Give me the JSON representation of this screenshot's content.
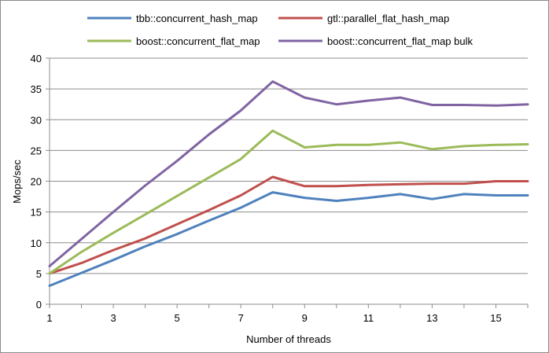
{
  "chart_data": {
    "type": "line",
    "title": "",
    "xlabel": "Number of threads",
    "ylabel": "Mops/sec",
    "xlim": [
      1,
      16
    ],
    "ylim": [
      0,
      40
    ],
    "x_ticks": [
      1,
      3,
      5,
      7,
      9,
      11,
      13,
      15
    ],
    "y_ticks": [
      0,
      5,
      10,
      15,
      20,
      25,
      30,
      35,
      40
    ],
    "grid": "horizontal",
    "legend_position": "top",
    "x": [
      1,
      2,
      3,
      4,
      5,
      6,
      7,
      8,
      9,
      10,
      11,
      12,
      13,
      14,
      15,
      16
    ],
    "series": [
      {
        "name": "tbb::concurrent_hash_map",
        "color": "#4f81bd",
        "values": [
          3.0,
          5.1,
          7.2,
          9.4,
          11.4,
          13.6,
          15.7,
          18.2,
          17.3,
          16.8,
          17.3,
          17.9,
          17.1,
          17.9,
          17.7,
          17.7
        ]
      },
      {
        "name": "gtl::parallel_flat_hash_map",
        "color": "#c0504d",
        "values": [
          5.0,
          6.7,
          8.8,
          10.7,
          13.0,
          15.3,
          17.7,
          20.7,
          19.2,
          19.2,
          19.4,
          19.5,
          19.6,
          19.6,
          20.0,
          20.0
        ]
      },
      {
        "name": "boost::concurrent_flat_map",
        "color": "#9bbb59",
        "values": [
          5.0,
          8.5,
          11.6,
          14.6,
          17.6,
          20.6,
          23.6,
          28.2,
          25.5,
          25.9,
          25.9,
          26.3,
          25.2,
          25.7,
          25.9,
          26.0
        ]
      },
      {
        "name": "boost::concurrent_flat_map bulk",
        "color": "#8064a2",
        "values": [
          6.2,
          10.6,
          15.0,
          19.3,
          23.3,
          27.6,
          31.5,
          36.2,
          33.6,
          32.5,
          33.1,
          33.6,
          32.4,
          32.4,
          32.3,
          32.5
        ]
      }
    ]
  }
}
